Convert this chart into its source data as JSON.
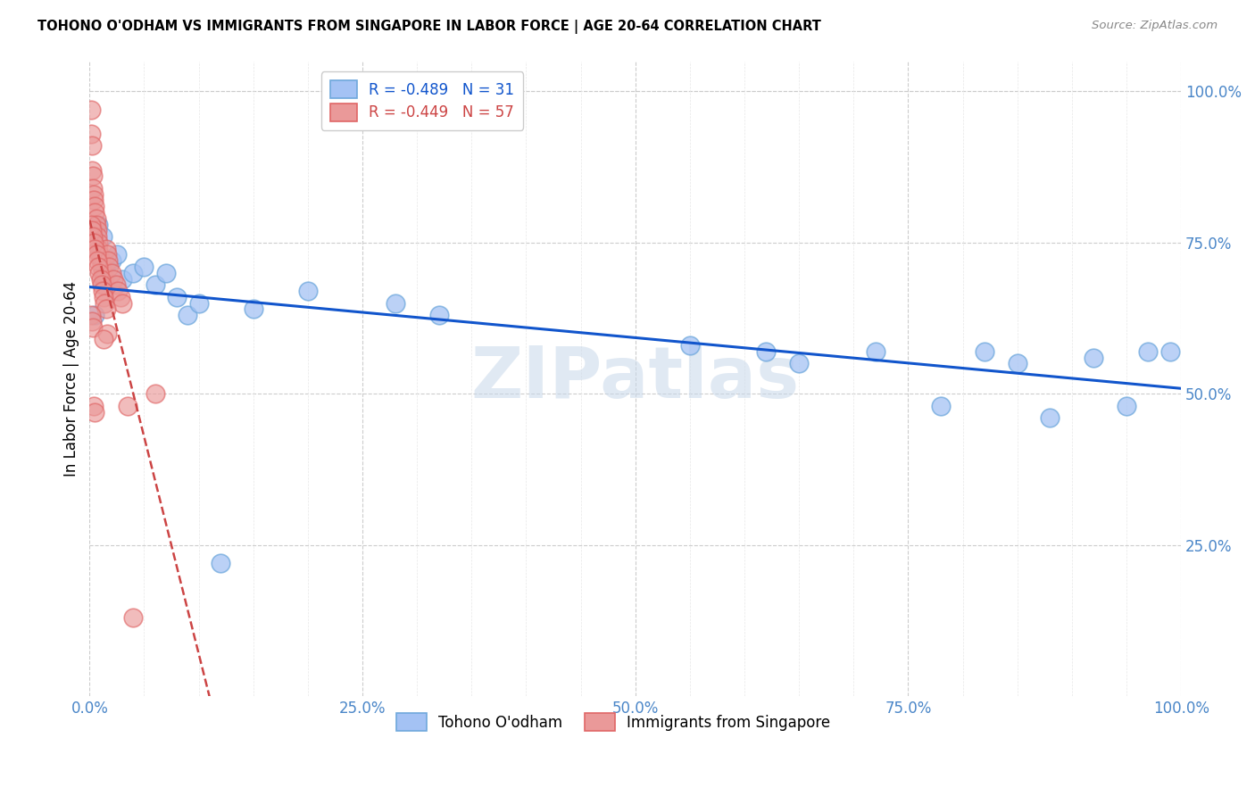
{
  "title": "TOHONO O'ODHAM VS IMMIGRANTS FROM SINGAPORE IN LABOR FORCE | AGE 20-64 CORRELATION CHART",
  "source": "Source: ZipAtlas.com",
  "ylabel": "In Labor Force | Age 20-64",
  "xlim": [
    0.0,
    1.0
  ],
  "ylim": [
    0.0,
    1.05
  ],
  "xtick_labels": [
    "0.0%",
    "",
    "",
    "",
    "",
    "25.0%",
    "",
    "",
    "",
    "",
    "50.0%",
    "",
    "",
    "",
    "",
    "75.0%",
    "",
    "",
    "",
    "",
    "100.0%"
  ],
  "xtick_values": [
    0.0,
    0.05,
    0.1,
    0.15,
    0.2,
    0.25,
    0.3,
    0.35,
    0.4,
    0.45,
    0.5,
    0.55,
    0.6,
    0.65,
    0.7,
    0.75,
    0.8,
    0.85,
    0.9,
    0.95,
    1.0
  ],
  "ytick_right_labels": [
    "100.0%",
    "75.0%",
    "50.0%",
    "25.0%"
  ],
  "ytick_right_values": [
    1.0,
    0.75,
    0.5,
    0.25
  ],
  "blue_R": -0.489,
  "blue_N": 31,
  "pink_R": -0.449,
  "pink_N": 57,
  "blue_color": "#a4c2f4",
  "pink_color": "#ea9999",
  "blue_edge_color": "#6fa8dc",
  "pink_edge_color": "#e06666",
  "blue_line_color": "#1155cc",
  "pink_line_color": "#cc4444",
  "watermark_text": "ZIPatlas",
  "blue_x": [
    0.005,
    0.008,
    0.012,
    0.015,
    0.02,
    0.025,
    0.03,
    0.04,
    0.05,
    0.06,
    0.07,
    0.08,
    0.09,
    0.1,
    0.15,
    0.2,
    0.28,
    0.32,
    0.55,
    0.62,
    0.65,
    0.72,
    0.78,
    0.82,
    0.85,
    0.88,
    0.92,
    0.95,
    0.97,
    0.99,
    0.12
  ],
  "blue_y": [
    0.63,
    0.78,
    0.76,
    0.71,
    0.72,
    0.73,
    0.69,
    0.7,
    0.71,
    0.68,
    0.7,
    0.66,
    0.63,
    0.65,
    0.64,
    0.67,
    0.65,
    0.63,
    0.58,
    0.57,
    0.55,
    0.57,
    0.48,
    0.57,
    0.55,
    0.46,
    0.56,
    0.48,
    0.57,
    0.57,
    0.22
  ],
  "pink_x": [
    0.001,
    0.001,
    0.002,
    0.002,
    0.003,
    0.003,
    0.004,
    0.004,
    0.005,
    0.005,
    0.006,
    0.006,
    0.007,
    0.007,
    0.008,
    0.008,
    0.009,
    0.01,
    0.011,
    0.012,
    0.013,
    0.014,
    0.015,
    0.016,
    0.017,
    0.018,
    0.02,
    0.022,
    0.024,
    0.026,
    0.028,
    0.03,
    0.001,
    0.002,
    0.003,
    0.004,
    0.005,
    0.006,
    0.007,
    0.008,
    0.009,
    0.01,
    0.011,
    0.012,
    0.013,
    0.014,
    0.015,
    0.001,
    0.002,
    0.003,
    0.004,
    0.005,
    0.016,
    0.013,
    0.035,
    0.04,
    0.06
  ],
  "pink_y": [
    0.97,
    0.93,
    0.91,
    0.87,
    0.86,
    0.84,
    0.83,
    0.82,
    0.81,
    0.8,
    0.79,
    0.78,
    0.77,
    0.76,
    0.75,
    0.74,
    0.73,
    0.72,
    0.71,
    0.7,
    0.69,
    0.68,
    0.74,
    0.73,
    0.72,
    0.71,
    0.7,
    0.69,
    0.68,
    0.67,
    0.66,
    0.65,
    0.78,
    0.77,
    0.76,
    0.75,
    0.74,
    0.73,
    0.72,
    0.71,
    0.7,
    0.69,
    0.68,
    0.67,
    0.66,
    0.65,
    0.64,
    0.63,
    0.62,
    0.61,
    0.48,
    0.47,
    0.6,
    0.59,
    0.48,
    0.13,
    0.5
  ]
}
